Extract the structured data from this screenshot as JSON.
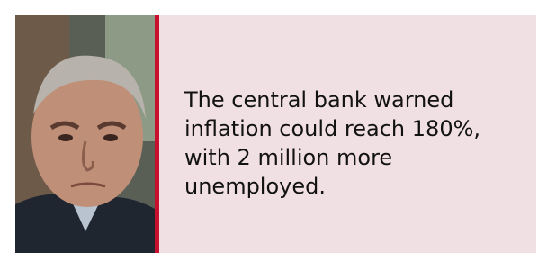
{
  "quote": {
    "lines": [
      "The central bank warned",
      "inflation could reach 180%,",
      "with 2 million more",
      "unemployed."
    ]
  }
}
